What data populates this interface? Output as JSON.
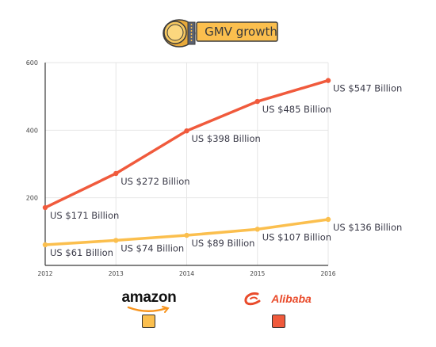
{
  "chart_data": {
    "type": "line",
    "title": "GMV growth",
    "x": [
      2012,
      2013,
      2014,
      2015,
      2016
    ],
    "x_tick_labels": [
      "2012",
      "2013",
      "2014",
      "2015",
      "2016"
    ],
    "ylim": [
      0,
      600
    ],
    "y_ticks": [
      200,
      400,
      600
    ],
    "y_tick_labels": [
      "200",
      "400",
      "600"
    ],
    "grid": true,
    "series": [
      {
        "name": "alibaba",
        "color": "#f05a3c",
        "values": [
          171,
          272,
          398,
          485,
          547
        ],
        "labels": [
          "US $171 Billion",
          "US $272 Billion",
          "US $398 Billion",
          "US $485 Billion",
          "US $547 Billion"
        ]
      },
      {
        "name": "amazon",
        "color": "#fbbf4e",
        "values": [
          61,
          74,
          89,
          107,
          136
        ],
        "labels": [
          "US $61 Billion",
          "US $74 Billion",
          "US $89 Billion",
          "US $107 Billion",
          "US $136 Billion"
        ]
      }
    ],
    "legend": {
      "placement": "bottom",
      "items": [
        {
          "label": "amazon",
          "color": "#fbbf4e"
        },
        {
          "label": "Alibaba",
          "color": "#f05a3c"
        }
      ]
    }
  }
}
